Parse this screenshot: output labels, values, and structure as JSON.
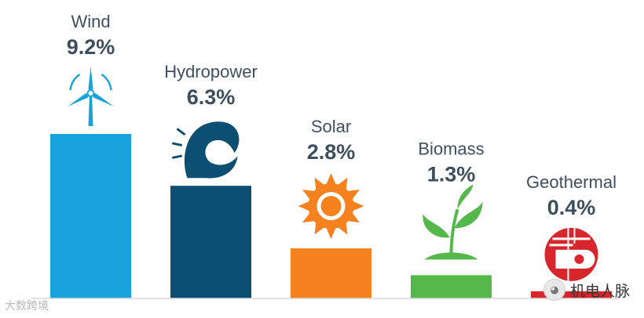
{
  "chart_data": {
    "type": "bar",
    "categories": [
      "Wind",
      "Hydropower",
      "Solar",
      "Biomass",
      "Geothermal"
    ],
    "values": [
      9.2,
      6.3,
      2.8,
      1.3,
      0.4
    ],
    "value_labels": [
      "9.2%",
      "6.3%",
      "2.8%",
      "1.3%",
      "0.4%"
    ],
    "colors": [
      "#19a3dc",
      "#0d4f73",
      "#f5821f",
      "#54b84a",
      "#d7272d"
    ],
    "icons": [
      "wind-turbine-icon",
      "wave-icon",
      "sun-icon",
      "seedling-icon",
      "geothermal-icon"
    ],
    "grid": false,
    "legend": "none"
  },
  "watermarks": {
    "left": "大数跨境",
    "right": "机电人脉"
  }
}
